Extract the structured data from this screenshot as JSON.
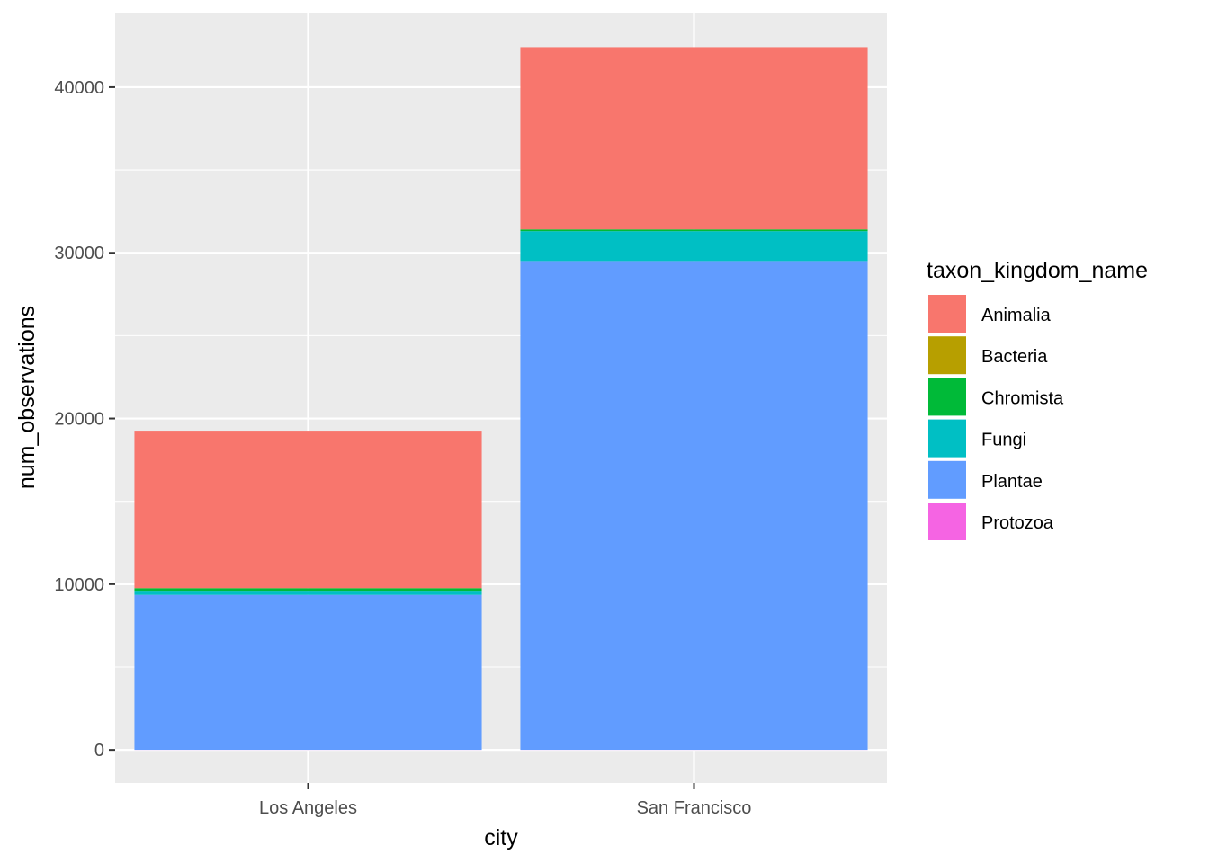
{
  "chart_data": {
    "type": "bar",
    "stacked": true,
    "title": "",
    "xlabel": "city",
    "ylabel": "num_observations",
    "categories": [
      "Los Angeles",
      "San Francisco"
    ],
    "ylim": [
      -2000,
      44500
    ],
    "yticks": [
      0,
      10000,
      20000,
      30000,
      40000
    ],
    "legend_title": "taxon_kingdom_name",
    "legend_position": "right",
    "grid": true,
    "panel_background": "#EBEBEB",
    "series": [
      {
        "name": "Animalia",
        "color": "#F8766D",
        "values": [
          9500,
          11000
        ]
      },
      {
        "name": "Bacteria",
        "color": "#B79F00",
        "values": [
          10,
          10
        ]
      },
      {
        "name": "Chromista",
        "color": "#00BA38",
        "values": [
          150,
          100
        ]
      },
      {
        "name": "Fungi",
        "color": "#00BFC4",
        "values": [
          250,
          1800
        ]
      },
      {
        "name": "Plantae",
        "color": "#619CFF",
        "values": [
          9350,
          29500
        ]
      },
      {
        "name": "Protozoa",
        "color": "#F564E3",
        "values": [
          5,
          5
        ]
      }
    ]
  }
}
